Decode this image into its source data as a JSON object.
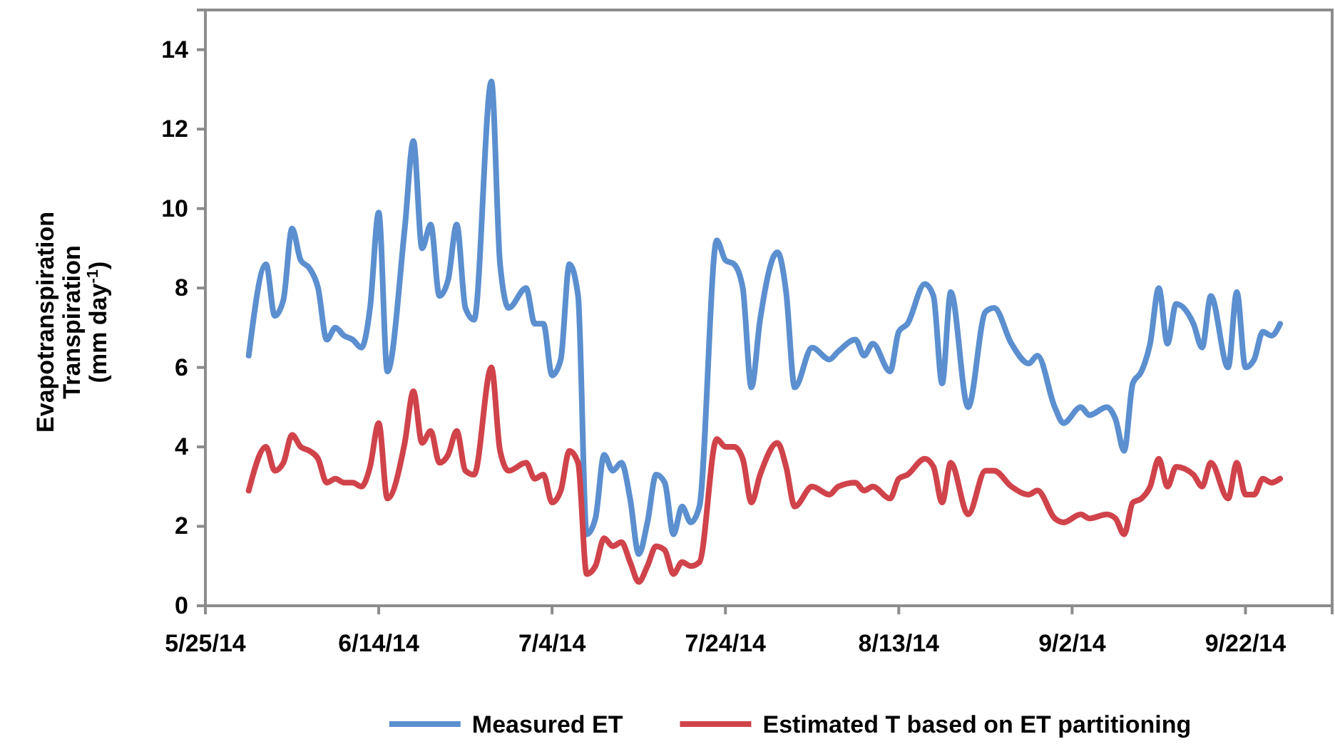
{
  "chart_data": {
    "type": "line",
    "ylabel": "Evapotranspiration\nTranspiration\n(mm day$^{-1}$)",
    "x": [
      "2014-05-30",
      "2014-06-01",
      "2014-06-02",
      "2014-06-03",
      "2014-06-04",
      "2014-06-05",
      "2014-06-06",
      "2014-06-07",
      "2014-06-08",
      "2014-06-09",
      "2014-06-10",
      "2014-06-11",
      "2014-06-12",
      "2014-06-13",
      "2014-06-14",
      "2014-06-15",
      "2014-06-17",
      "2014-06-18",
      "2014-06-19",
      "2014-06-20",
      "2014-06-21",
      "2014-06-22",
      "2014-06-23",
      "2014-06-24",
      "2014-06-25",
      "2014-06-27",
      "2014-06-28",
      "2014-06-29",
      "2014-07-01",
      "2014-07-02",
      "2014-07-03",
      "2014-07-04",
      "2014-07-05",
      "2014-07-06",
      "2014-07-07",
      "2014-07-08",
      "2014-07-09",
      "2014-07-10",
      "2014-07-11",
      "2014-07-12",
      "2014-07-13",
      "2014-07-14",
      "2014-07-15",
      "2014-07-16",
      "2014-07-17",
      "2014-07-18",
      "2014-07-19",
      "2014-07-20",
      "2014-07-21",
      "2014-07-23",
      "2014-07-24",
      "2014-07-25",
      "2014-07-26",
      "2014-07-27",
      "2014-07-28",
      "2014-07-30",
      "2014-07-31",
      "2014-08-01",
      "2014-08-03",
      "2014-08-05",
      "2014-08-06",
      "2014-08-08",
      "2014-08-09",
      "2014-08-10",
      "2014-08-12",
      "2014-08-13",
      "2014-08-14",
      "2014-08-16",
      "2014-08-17",
      "2014-08-18",
      "2014-08-19",
      "2014-08-21",
      "2014-08-23",
      "2014-08-24",
      "2014-08-26",
      "2014-08-28",
      "2014-08-29",
      "2014-08-31",
      "2014-09-01",
      "2014-09-03",
      "2014-09-04",
      "2014-09-06",
      "2014-09-07",
      "2014-09-08",
      "2014-09-09",
      "2014-09-10",
      "2014-09-11",
      "2014-09-12",
      "2014-09-13",
      "2014-09-14",
      "2014-09-16",
      "2014-09-17",
      "2014-09-18",
      "2014-09-20",
      "2014-09-21",
      "2014-09-22",
      "2014-09-23",
      "2014-09-24",
      "2014-09-25",
      "2014-09-26"
    ],
    "series": [
      {
        "name": "Measured ET",
        "color": "#5b8fcf",
        "values": [
          6.3,
          8.6,
          7.3,
          7.7,
          9.5,
          8.7,
          8.5,
          8.0,
          6.7,
          7.0,
          6.8,
          6.7,
          6.5,
          7.5,
          9.9,
          5.9,
          9.5,
          11.7,
          9.0,
          9.6,
          7.8,
          8.2,
          9.6,
          7.5,
          7.2,
          13.2,
          8.6,
          7.5,
          8.0,
          7.1,
          7.1,
          5.8,
          6.2,
          8.6,
          7.8,
          1.8,
          2.2,
          3.8,
          3.4,
          3.6,
          2.7,
          1.3,
          2.1,
          3.3,
          3.1,
          1.8,
          2.5,
          2.1,
          2.5,
          9.2,
          8.7,
          8.6,
          8.0,
          5.5,
          7.2,
          8.9,
          7.9,
          5.5,
          6.5,
          6.2,
          6.4,
          6.7,
          6.3,
          6.6,
          5.9,
          6.9,
          7.1,
          8.1,
          7.8,
          5.6,
          7.9,
          5.0,
          7.4,
          7.5,
          6.6,
          6.1,
          6.3,
          5.0,
          4.6,
          5.0,
          4.8,
          5.0,
          4.7,
          3.9,
          5.6,
          5.9,
          6.6,
          8.0,
          6.6,
          7.6,
          7.1,
          6.5,
          7.8,
          6.0,
          7.9,
          6.0,
          6.2,
          6.9,
          6.8,
          7.1
        ]
      },
      {
        "name": "Estimated T based on ET partitioning",
        "color": "#d0434a",
        "values": [
          2.9,
          4.0,
          3.4,
          3.6,
          4.3,
          4.0,
          3.9,
          3.7,
          3.1,
          3.2,
          3.1,
          3.1,
          3.0,
          3.5,
          4.6,
          2.7,
          4.1,
          5.4,
          4.1,
          4.4,
          3.6,
          3.8,
          4.4,
          3.4,
          3.3,
          6.0,
          3.9,
          3.4,
          3.6,
          3.2,
          3.3,
          2.6,
          2.9,
          3.9,
          3.6,
          0.8,
          1.0,
          1.7,
          1.5,
          1.6,
          1.1,
          0.6,
          1.0,
          1.5,
          1.4,
          0.8,
          1.1,
          1.0,
          1.1,
          4.2,
          4.0,
          4.0,
          3.7,
          2.6,
          3.3,
          4.1,
          3.5,
          2.5,
          3.0,
          2.8,
          3.0,
          3.1,
          2.9,
          3.0,
          2.7,
          3.2,
          3.3,
          3.7,
          3.5,
          2.6,
          3.6,
          2.3,
          3.4,
          3.4,
          3.0,
          2.8,
          2.9,
          2.2,
          2.1,
          2.3,
          2.2,
          2.3,
          2.2,
          1.8,
          2.6,
          2.7,
          3.0,
          3.7,
          3.0,
          3.5,
          3.3,
          3.0,
          3.6,
          2.7,
          3.6,
          2.8,
          2.8,
          3.2,
          3.1,
          3.2
        ]
      }
    ],
    "xlim": [
      "2014-05-25",
      "2014-10-02"
    ],
    "xticks": [
      {
        "value": "2014-05-25",
        "label": "5/25/14"
      },
      {
        "value": "2014-06-14",
        "label": "6/14/14"
      },
      {
        "value": "2014-07-04",
        "label": "7/4/14"
      },
      {
        "value": "2014-07-24",
        "label": "7/24/14"
      },
      {
        "value": "2014-08-13",
        "label": "8/13/14"
      },
      {
        "value": "2014-09-02",
        "label": "9/2/14"
      },
      {
        "value": "2014-09-22",
        "label": "9/22/14"
      }
    ],
    "ylim": [
      0,
      15
    ],
    "yticks": [
      0,
      2,
      4,
      6,
      8,
      10,
      12,
      14
    ],
    "grid": false,
    "legend": "bottom",
    "marker": "none",
    "line_style": "solid"
  }
}
